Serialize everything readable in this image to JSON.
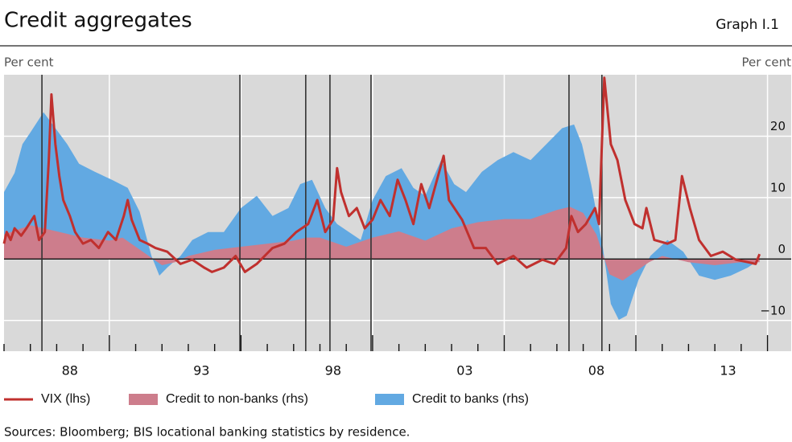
{
  "chart_data": {
    "type": "line-area",
    "title": "Credit aggregates",
    "graph_label": "Graph I.1",
    "y_label_left": "Per cent",
    "y_label_right": "Per cent",
    "source": "Sources: Bloomberg; BIS locational banking statistics by residence.",
    "xlim": [
      1986,
      2015.9
    ],
    "xticks": [
      {
        "value": 1988.5,
        "label": "88"
      },
      {
        "value": 1993.5,
        "label": "93"
      },
      {
        "value": 1998.5,
        "label": "98"
      },
      {
        "value": 2003.5,
        "label": "03"
      },
      {
        "value": 2008.5,
        "label": "08"
      },
      {
        "value": 2013.5,
        "label": "13"
      }
    ],
    "xtick_marks": [
      1986,
      1987,
      1988,
      1989,
      1990,
      1991,
      1992,
      1993,
      1994,
      1995,
      1996,
      1997,
      1998,
      1999,
      2000,
      2001,
      2002,
      2003,
      2004,
      2005,
      2006,
      2007,
      2008,
      2009,
      2010,
      2011,
      2012,
      2013,
      2014,
      2015
    ],
    "event_lines": [
      1987.44,
      1994.96,
      1997.46,
      1998.38,
      1999.94,
      2007.46,
      2008.71
    ],
    "ylim": [
      -15,
      30
    ],
    "yticks": [
      {
        "value": -10,
        "label": "−10"
      },
      0,
      10,
      20
    ],
    "grid": true,
    "series": [
      {
        "name": "VIX (lhs)",
        "kind": "line",
        "color": "#c0302e",
        "x": [
          1986.0,
          1986.1,
          1986.25,
          1986.4,
          1986.65,
          1986.85,
          1987.15,
          1987.33,
          1987.55,
          1987.7,
          1987.8,
          1987.95,
          1988.1,
          1988.25,
          1988.5,
          1988.7,
          1989.0,
          1989.3,
          1989.6,
          1989.95,
          1990.25,
          1990.55,
          1990.7,
          1990.85,
          1991.15,
          1991.45,
          1991.75,
          1992.2,
          1992.7,
          1993.15,
          1993.6,
          1993.9,
          1994.35,
          1994.8,
          1995.15,
          1995.6,
          1996.2,
          1996.65,
          1997.1,
          1997.55,
          1997.9,
          1998.2,
          1998.5,
          1998.65,
          1998.8,
          1999.1,
          1999.4,
          1999.7,
          2000.0,
          2000.3,
          2000.65,
          2000.95,
          2001.25,
          2001.55,
          2001.85,
          2002.15,
          2002.7,
          2002.9,
          2003.4,
          2003.85,
          2004.3,
          2004.75,
          2005.35,
          2005.85,
          2006.45,
          2006.9,
          2007.35,
          2007.55,
          2007.8,
          2008.1,
          2008.45,
          2008.6,
          2008.8,
          2009.05,
          2009.3,
          2009.6,
          2009.95,
          2010.25,
          2010.4,
          2010.7,
          2011.2,
          2011.5,
          2011.75,
          2012.05,
          2012.4,
          2012.85,
          2013.3,
          2013.8,
          2014.25,
          2014.55,
          2014.7
        ],
        "values": [
          2.5,
          4.4,
          3.1,
          5,
          3.8,
          5,
          7,
          3.1,
          4.4,
          16,
          26.8,
          18.7,
          13.5,
          9.6,
          7,
          4.4,
          2.5,
          3.1,
          1.8,
          4.4,
          3.1,
          7,
          9.6,
          6.4,
          3.1,
          2.5,
          1.8,
          1.2,
          -0.8,
          -0.1,
          -1.4,
          -2.1,
          -1.4,
          0.5,
          -2.1,
          -0.8,
          1.8,
          2.5,
          4.4,
          5.7,
          9.6,
          4.4,
          6.4,
          14.8,
          10.9,
          7,
          8.3,
          5,
          6.4,
          9.6,
          7,
          12.9,
          9.6,
          5.7,
          12.2,
          8.3,
          16.8,
          9.6,
          6.4,
          1.8,
          1.8,
          -0.8,
          0.5,
          -1.4,
          -0.1,
          -0.8,
          1.8,
          7,
          4.4,
          5.7,
          8.3,
          5.7,
          29.5,
          18.7,
          16.1,
          9.6,
          5.7,
          5,
          8.3,
          3.1,
          2.5,
          3.1,
          13.5,
          8.3,
          3.1,
          0.5,
          1.2,
          -0.1,
          -0.5,
          -0.8,
          0.8
        ]
      },
      {
        "name": "Credit to non-banks (rhs)",
        "kind": "area",
        "color": "#cd7d8c",
        "x": [
          1986,
          1987,
          1988,
          1989,
          1990,
          1990.5,
          1991,
          1991.5,
          1992,
          1992.5,
          1993,
          1994,
          1995,
          1996,
          1997,
          1997.5,
          1998,
          1999,
          2000,
          2001,
          2002,
          2003,
          2004,
          2005,
          2006,
          2007,
          2007.5,
          2008,
          2008.5,
          2009,
          2009.5,
          2010,
          2010.5,
          2011,
          2012,
          2013,
          2014,
          2014.7
        ],
        "values": [
          4,
          5.5,
          4.5,
          3.5,
          3,
          3.5,
          2,
          0.5,
          -1,
          -0.5,
          0.5,
          1.5,
          2,
          2.5,
          3,
          3.5,
          3.5,
          2,
          3.5,
          4.5,
          3,
          5,
          6,
          6.5,
          6.5,
          8,
          8.5,
          7.5,
          4,
          -2.5,
          -3.5,
          -2,
          -0.5,
          0.5,
          -0.5,
          -1,
          -0.5,
          -0.5
        ]
      },
      {
        "name": "Credit to banks (rhs)",
        "kind": "area",
        "color": "#62a9e2",
        "x": [
          1986.0,
          1986.4,
          1986.7,
          1987.0,
          1987.5,
          1987.95,
          1988.4,
          1988.85,
          1989.45,
          1990.1,
          1990.7,
          1991.15,
          1991.6,
          1991.9,
          1992.2,
          1992.7,
          1993.15,
          1993.75,
          1994.35,
          1995.0,
          1995.6,
          1996.2,
          1996.8,
          1997.25,
          1997.7,
          1998.2,
          1998.65,
          1999.1,
          1999.55,
          2000.0,
          2000.5,
          2001.1,
          2001.55,
          2002.0,
          2002.6,
          2003.1,
          2003.55,
          2004.15,
          2004.75,
          2005.35,
          2006.0,
          2006.6,
          2007.2,
          2007.65,
          2007.95,
          2008.3,
          2008.75,
          2009.05,
          2009.35,
          2009.65,
          2010.1,
          2010.55,
          2011.2,
          2011.8,
          2012.4,
          2013.0,
          2013.6,
          2014.25,
          2014.7
        ],
        "values": [
          10.9,
          14,
          18.7,
          20.6,
          23.9,
          21.3,
          18.7,
          15.5,
          14.2,
          12.9,
          11.6,
          7.7,
          0.5,
          -2.7,
          -1.4,
          0.5,
          3.1,
          4.4,
          4.4,
          8.3,
          10.3,
          7,
          8.3,
          12.2,
          12.9,
          8.3,
          5.7,
          4.4,
          3.1,
          9.6,
          13.5,
          14.8,
          11.6,
          10.3,
          16.1,
          12.2,
          10.9,
          14.2,
          16.1,
          17.4,
          16.1,
          18.7,
          21.3,
          21.9,
          18.7,
          12.2,
          1.8,
          -7.3,
          -9.9,
          -9.2,
          -3.4,
          0.5,
          3.1,
          1.2,
          -2.7,
          -3.4,
          -2.7,
          -1.4,
          -0.1
        ]
      }
    ]
  }
}
